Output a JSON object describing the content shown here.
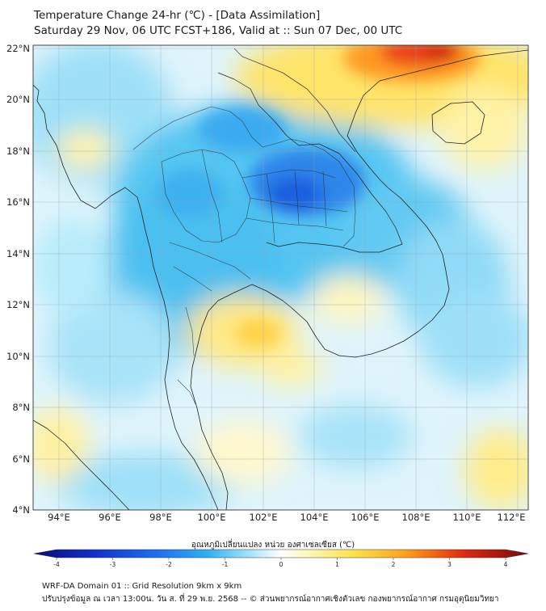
{
  "header": {
    "title": "Temperature Change 24-hr (℃) - [Data Assimilation]",
    "subtitle": "Saturday 29 Nov, 06 UTC FCST+186, Valid at :: Sun 07 Dec, 00 UTC"
  },
  "map": {
    "lat_ticks": [
      "22°N",
      "20°N",
      "18°N",
      "16°N",
      "14°N",
      "12°N",
      "10°N",
      "8°N",
      "6°N",
      "4°N"
    ],
    "lon_ticks": [
      "94°E",
      "96°E",
      "98°E",
      "100°E",
      "102°E",
      "104°E",
      "106°E",
      "108°E",
      "110°E",
      "112°E"
    ],
    "lat_range": [
      4,
      22.2
    ],
    "lon_range": [
      93,
      112.5
    ]
  },
  "colorbar": {
    "label": "อุณหภูมิเปลี่ยนแปลง หน่วย องศาเซลเซียส (℃)",
    "ticks": [
      "-4",
      "-3",
      "-2",
      "-1",
      "0",
      "1",
      "2",
      "3",
      "4"
    ]
  },
  "footer": {
    "line1": "WRF-DA Domain 01 :: Grid Resolution 9km x 9km",
    "line2": "ปรับปรุงข้อมูล ณ เวลา 13:00น. วัน ส. ที่ 29 พ.ย. 2568 -- © ส่วนพยากรณ์อากาศเชิงตัวเลข กองพยากรณ์อากาศ กรมอุตุนิยมวิทยา"
  },
  "colors": {
    "strong_cool": "#1f5fe0",
    "cool": "#37b8f0",
    "light_cool": "#b8ecfb",
    "neutral": "#ffffff",
    "warm": "#ffe97a",
    "strong_warm": "#e02a10"
  }
}
